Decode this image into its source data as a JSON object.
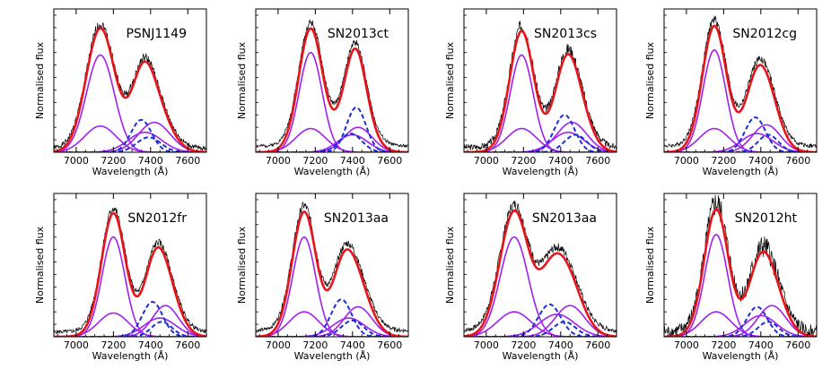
{
  "figure": {
    "colors": {
      "observed": "#000000",
      "fit_total": "#e8141c",
      "component_solid": "#a020f0",
      "component_dashed": "#1f2fd6",
      "axis": "#000000"
    },
    "line_styles": {
      "observed": "thin solid black (noisy observed spectrum)",
      "fit_total": "thick solid red (total fit)",
      "component_solid": "solid purple (Gaussian components)",
      "component_dashed": "dashed blue (Gaussian components)"
    }
  },
  "chart_data": [
    {
      "type": "line",
      "title": "PSNJ1149",
      "xlabel": "Wavelength (Å)",
      "ylabel": "Normalised flux",
      "xlim": [
        6880,
        7700
      ],
      "ylim": [
        0,
        1.15
      ],
      "xticks": [
        7000,
        7200,
        7400,
        7600
      ],
      "xtick_labels": [
        "7000",
        "7200",
        "7400",
        "7600"
      ],
      "grid": false,
      "components": [
        {
          "center": 7130,
          "amp": 0.78,
          "sigma": 75,
          "style": "solid"
        },
        {
          "center": 7130,
          "amp": 0.21,
          "sigma": 85,
          "style": "solid"
        },
        {
          "center": 7420,
          "amp": 0.24,
          "sigma": 85,
          "style": "solid"
        },
        {
          "center": 7370,
          "amp": 0.16,
          "sigma": 90,
          "style": "solid"
        },
        {
          "center": 7350,
          "amp": 0.26,
          "sigma": 55,
          "style": "dashed"
        },
        {
          "center": 7390,
          "amp": 0.12,
          "sigma": 65,
          "style": "dashed"
        }
      ],
      "observed_noise": 0.03,
      "observed_offset": 0.03,
      "seed": 1
    },
    {
      "type": "line",
      "title": "SN2013ct",
      "xlabel": "Wavelength (Å)",
      "ylabel": "Normalised flux",
      "xlim": [
        6880,
        7700
      ],
      "ylim": [
        0,
        1.15
      ],
      "xticks": [
        7000,
        7200,
        7400,
        7600
      ],
      "xtick_labels": [
        "7000",
        "7200",
        "7400",
        "7600"
      ],
      "grid": false,
      "components": [
        {
          "center": 7175,
          "amp": 0.8,
          "sigma": 62,
          "style": "solid"
        },
        {
          "center": 7175,
          "amp": 0.19,
          "sigma": 80,
          "style": "solid"
        },
        {
          "center": 7430,
          "amp": 0.2,
          "sigma": 75,
          "style": "solid"
        },
        {
          "center": 7400,
          "amp": 0.14,
          "sigma": 80,
          "style": "solid"
        },
        {
          "center": 7420,
          "amp": 0.36,
          "sigma": 52,
          "style": "dashed"
        },
        {
          "center": 7390,
          "amp": 0.15,
          "sigma": 60,
          "style": "dashed"
        }
      ],
      "observed_noise": 0.02,
      "observed_offset": 0.05,
      "seed": 2
    },
    {
      "type": "line",
      "title": "SN2013cs",
      "xlabel": "Wavelength (Å)",
      "ylabel": "Normalised flux",
      "xlim": [
        6880,
        7700
      ],
      "ylim": [
        0,
        1.15
      ],
      "xticks": [
        7000,
        7200,
        7400,
        7600
      ],
      "xtick_labels": [
        "7000",
        "7200",
        "7400",
        "7600"
      ],
      "grid": false,
      "components": [
        {
          "center": 7190,
          "amp": 0.78,
          "sigma": 62,
          "style": "solid"
        },
        {
          "center": 7190,
          "amp": 0.19,
          "sigma": 80,
          "style": "solid"
        },
        {
          "center": 7460,
          "amp": 0.24,
          "sigma": 80,
          "style": "solid"
        },
        {
          "center": 7440,
          "amp": 0.16,
          "sigma": 85,
          "style": "solid"
        },
        {
          "center": 7420,
          "amp": 0.3,
          "sigma": 55,
          "style": "dashed"
        },
        {
          "center": 7480,
          "amp": 0.14,
          "sigma": 60,
          "style": "dashed"
        }
      ],
      "observed_noise": 0.04,
      "observed_offset": 0.04,
      "seed": 3
    },
    {
      "type": "line",
      "title": "SN2012cg",
      "xlabel": "Wavelength (Å)",
      "ylabel": "Normalised flux",
      "xlim": [
        6880,
        7700
      ],
      "ylim": [
        0,
        1.15
      ],
      "xticks": [
        7000,
        7200,
        7400,
        7600
      ],
      "xtick_labels": [
        "7000",
        "7200",
        "7400",
        "7600"
      ],
      "grid": false,
      "components": [
        {
          "center": 7150,
          "amp": 0.82,
          "sigma": 62,
          "style": "solid"
        },
        {
          "center": 7150,
          "amp": 0.19,
          "sigma": 80,
          "style": "solid"
        },
        {
          "center": 7430,
          "amp": 0.22,
          "sigma": 75,
          "style": "solid"
        },
        {
          "center": 7380,
          "amp": 0.15,
          "sigma": 85,
          "style": "solid"
        },
        {
          "center": 7370,
          "amp": 0.28,
          "sigma": 55,
          "style": "dashed"
        },
        {
          "center": 7440,
          "amp": 0.14,
          "sigma": 55,
          "style": "dashed"
        }
      ],
      "observed_noise": 0.025,
      "observed_offset": 0.05,
      "seed": 4
    },
    {
      "type": "line",
      "title": "SN2012fr",
      "xlabel": "Wavelength (Å)",
      "ylabel": "Normalised flux",
      "xlim": [
        6880,
        7700
      ],
      "ylim": [
        0,
        1.15
      ],
      "xticks": [
        7000,
        7200,
        7400,
        7600
      ],
      "xtick_labels": [
        "7000",
        "7200",
        "7400",
        "7600"
      ],
      "grid": false,
      "components": [
        {
          "center": 7200,
          "amp": 0.8,
          "sigma": 62,
          "style": "solid"
        },
        {
          "center": 7200,
          "amp": 0.19,
          "sigma": 80,
          "style": "solid"
        },
        {
          "center": 7480,
          "amp": 0.25,
          "sigma": 70,
          "style": "solid"
        },
        {
          "center": 7450,
          "amp": 0.15,
          "sigma": 85,
          "style": "solid"
        },
        {
          "center": 7410,
          "amp": 0.28,
          "sigma": 55,
          "style": "dashed"
        },
        {
          "center": 7460,
          "amp": 0.12,
          "sigma": 55,
          "style": "dashed"
        }
      ],
      "observed_noise": 0.025,
      "observed_offset": 0.04,
      "seed": 5
    },
    {
      "type": "line",
      "title": "SN2013aa",
      "xlabel": "Wavelength (Å)",
      "ylabel": "Normalised flux",
      "xlim": [
        6880,
        7700
      ],
      "ylim": [
        0,
        1.15
      ],
      "xticks": [
        7000,
        7200,
        7400,
        7600
      ],
      "xtick_labels": [
        "7000",
        "7200",
        "7400",
        "7600"
      ],
      "grid": false,
      "components": [
        {
          "center": 7140,
          "amp": 0.8,
          "sigma": 62,
          "style": "solid"
        },
        {
          "center": 7140,
          "amp": 0.2,
          "sigma": 80,
          "style": "solid"
        },
        {
          "center": 7430,
          "amp": 0.24,
          "sigma": 75,
          "style": "solid"
        },
        {
          "center": 7380,
          "amp": 0.15,
          "sigma": 85,
          "style": "solid"
        },
        {
          "center": 7340,
          "amp": 0.3,
          "sigma": 55,
          "style": "dashed"
        },
        {
          "center": 7400,
          "amp": 0.13,
          "sigma": 60,
          "style": "dashed"
        }
      ],
      "observed_noise": 0.025,
      "observed_offset": 0.05,
      "seed": 6
    },
    {
      "type": "line",
      "title": "SN2013aa",
      "xlabel": "Wavelength (Å)",
      "ylabel": "Normalised flux",
      "xlim": [
        6880,
        7700
      ],
      "ylim": [
        0,
        1.15
      ],
      "xticks": [
        7000,
        7200,
        7400,
        7600
      ],
      "xtick_labels": [
        "7000",
        "7200",
        "7400",
        "7600"
      ],
      "grid": false,
      "components": [
        {
          "center": 7150,
          "amp": 0.8,
          "sigma": 75,
          "style": "solid"
        },
        {
          "center": 7150,
          "amp": 0.2,
          "sigma": 90,
          "style": "solid"
        },
        {
          "center": 7450,
          "amp": 0.25,
          "sigma": 80,
          "style": "solid"
        },
        {
          "center": 7380,
          "amp": 0.18,
          "sigma": 95,
          "style": "solid"
        },
        {
          "center": 7340,
          "amp": 0.26,
          "sigma": 60,
          "style": "dashed"
        },
        {
          "center": 7420,
          "amp": 0.12,
          "sigma": 60,
          "style": "dashed"
        }
      ],
      "observed_noise": 0.03,
      "observed_offset": 0.05,
      "seed": 7
    },
    {
      "type": "line",
      "title": "SN2012ht",
      "xlabel": "Wavelength (Å)",
      "ylabel": "Normalised flux",
      "xlim": [
        6880,
        7700
      ],
      "ylim": [
        0,
        1.15
      ],
      "xticks": [
        7000,
        7200,
        7400,
        7600
      ],
      "xtick_labels": [
        "7000",
        "7200",
        "7400",
        "7600"
      ],
      "grid": false,
      "components": [
        {
          "center": 7160,
          "amp": 0.82,
          "sigma": 62,
          "style": "solid"
        },
        {
          "center": 7160,
          "amp": 0.2,
          "sigma": 80,
          "style": "solid"
        },
        {
          "center": 7460,
          "amp": 0.25,
          "sigma": 75,
          "style": "solid"
        },
        {
          "center": 7400,
          "amp": 0.17,
          "sigma": 85,
          "style": "solid"
        },
        {
          "center": 7380,
          "amp": 0.24,
          "sigma": 55,
          "style": "dashed"
        },
        {
          "center": 7440,
          "amp": 0.12,
          "sigma": 55,
          "style": "dashed"
        }
      ],
      "observed_noise": 0.08,
      "observed_offset": 0.04,
      "seed": 8
    }
  ]
}
